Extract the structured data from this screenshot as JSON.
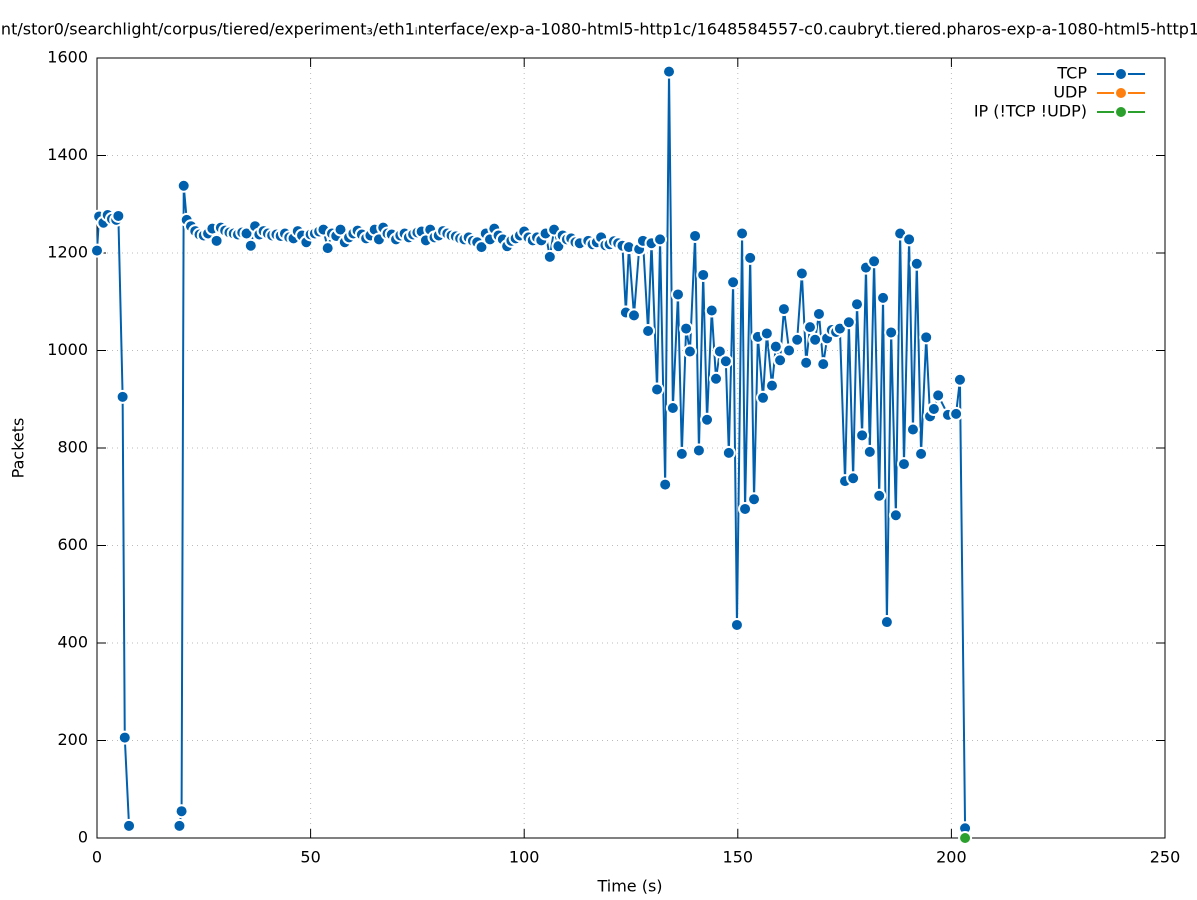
{
  "chart_data": {
    "type": "line",
    "title": "nt/stor0/searchlight/corpus/tiered/experiment₃/eth1ᵢnterface/exp-a-1080-html5-http1c/1648584557-c0.caubryt.tiered.pharos-exp-a-1080-html5-http1",
    "x_label": "Time (s)",
    "y_label": "Packets",
    "xlim": [
      0,
      250
    ],
    "xticks": [
      0,
      50,
      100,
      150,
      200,
      250
    ],
    "ylim": [
      0,
      1600
    ],
    "yticks": [
      0,
      200,
      400,
      600,
      800,
      1000,
      1200,
      1400,
      1600
    ],
    "grid": true,
    "legend": "top-right",
    "series": [
      {
        "name": "TCP",
        "color": "#0060ad",
        "x": [
          0,
          0.5,
          1.5,
          2.5,
          3.5,
          4.5,
          5,
          6,
          6.5,
          7.5,
          13,
          19.3,
          19.8,
          20.3,
          21,
          22,
          23,
          24,
          25,
          26,
          27,
          28,
          29,
          30,
          31,
          32,
          33,
          34,
          35,
          36,
          37,
          38,
          39,
          40,
          41,
          42,
          43,
          44,
          45,
          46,
          47,
          48,
          49,
          50,
          51,
          52,
          53,
          54,
          55,
          56,
          57,
          58,
          59,
          60,
          61,
          62,
          63,
          64,
          65,
          66,
          67,
          68,
          69,
          70,
          71,
          72,
          73,
          74,
          75,
          76,
          77,
          78,
          79,
          80,
          81,
          82,
          83,
          84,
          85,
          86,
          87,
          88,
          89,
          90,
          91,
          92,
          93,
          94,
          95,
          96,
          97,
          98,
          99,
          100,
          101,
          102,
          103,
          104,
          105,
          106,
          107,
          108,
          109,
          110,
          111,
          112,
          113,
          115,
          116,
          117,
          118,
          119,
          120,
          121,
          122,
          123,
          123.8,
          124.5,
          125.7,
          126.9,
          127.8,
          129,
          129.8,
          131.1,
          131.8,
          133,
          133.9,
          134.8,
          136,
          136.9,
          137.9,
          138.8,
          140,
          140.9,
          141.9,
          142.8,
          143.9,
          144.9,
          145.8,
          147.2,
          147.9,
          148.9,
          149.8,
          151,
          151.7,
          152.9,
          153.8,
          154.7,
          155.9,
          156.8,
          158,
          158.9,
          159.9,
          160.8,
          162,
          163.9,
          165,
          166,
          166.9,
          168.1,
          169,
          170,
          170.9,
          172,
          173,
          173.9,
          175.1,
          176,
          177,
          177.9,
          179.1,
          180,
          180.9,
          181.9,
          183.1,
          184,
          184.9,
          185.9,
          187,
          188,
          188.9,
          190.1,
          191,
          191.9,
          192.9,
          194.1,
          195,
          195.9,
          196.9,
          199.2,
          201.1,
          202,
          203.2
        ],
        "values": [
          1205,
          1275,
          1262,
          1278,
          1270,
          1268,
          1276,
          905,
          206,
          25,
          null,
          25,
          55,
          1338,
          1268,
          1255,
          1245,
          1238,
          1236,
          1240,
          1250,
          1225,
          1252,
          1246,
          1242,
          1240,
          1238,
          1242,
          1240,
          1215,
          1255,
          1238,
          1245,
          1240,
          1236,
          1238,
          1235,
          1240,
          1232,
          1230,
          1245,
          1236,
          1222,
          1238,
          1240,
          1244,
          1248,
          1210,
          1240,
          1235,
          1248,
          1222,
          1232,
          1240,
          1246,
          1238,
          1230,
          1236,
          1248,
          1228,
          1252,
          1240,
          1238,
          1228,
          1236,
          1240,
          1232,
          1238,
          1242,
          1244,
          1226,
          1248,
          1232,
          1236,
          1245,
          1240,
          1236,
          1234,
          1230,
          1228,
          1232,
          1225,
          1222,
          1212,
          1240,
          1228,
          1250,
          1236,
          1228,
          1214,
          1225,
          1230,
          1236,
          1244,
          1232,
          1226,
          1232,
          1226,
          1240,
          1192,
          1248,
          1214,
          1236,
          1228,
          1230,
          1222,
          1220,
          1225,
          1218,
          1222,
          1232,
          1216,
          1218,
          1224,
          1220,
          1215,
          1078,
          1212,
          1072,
          1208,
          1225,
          1040,
          1220,
          920,
          1228,
          725,
          1572,
          882,
          1115,
          788,
          1045,
          998,
          1235,
          795,
          1155,
          858,
          1082,
          942,
          998,
          978,
          790,
          1140,
          437,
          1240,
          675,
          1190,
          695,
          1028,
          903,
          1035,
          928,
          1008,
          980,
          1085,
          1000,
          1022,
          1158,
          975,
          1048,
          1022,
          1075,
          972,
          1025,
          1042,
          1038,
          1045,
          732,
          1058,
          738,
          1095,
          826,
          1170,
          792,
          1183,
          702,
          1108,
          443,
          1037,
          662,
          1240,
          767,
          1228,
          838,
          1178,
          788,
          1027,
          865,
          880,
          908,
          868,
          870,
          940,
          20
        ]
      },
      {
        "name": "UDP",
        "color": "#ff7f0e",
        "x": [],
        "values": []
      },
      {
        "name": "IP (!TCP  !UDP)",
        "color": "#2ca02c",
        "x": [
          203.2
        ],
        "values": [
          0
        ]
      }
    ]
  }
}
